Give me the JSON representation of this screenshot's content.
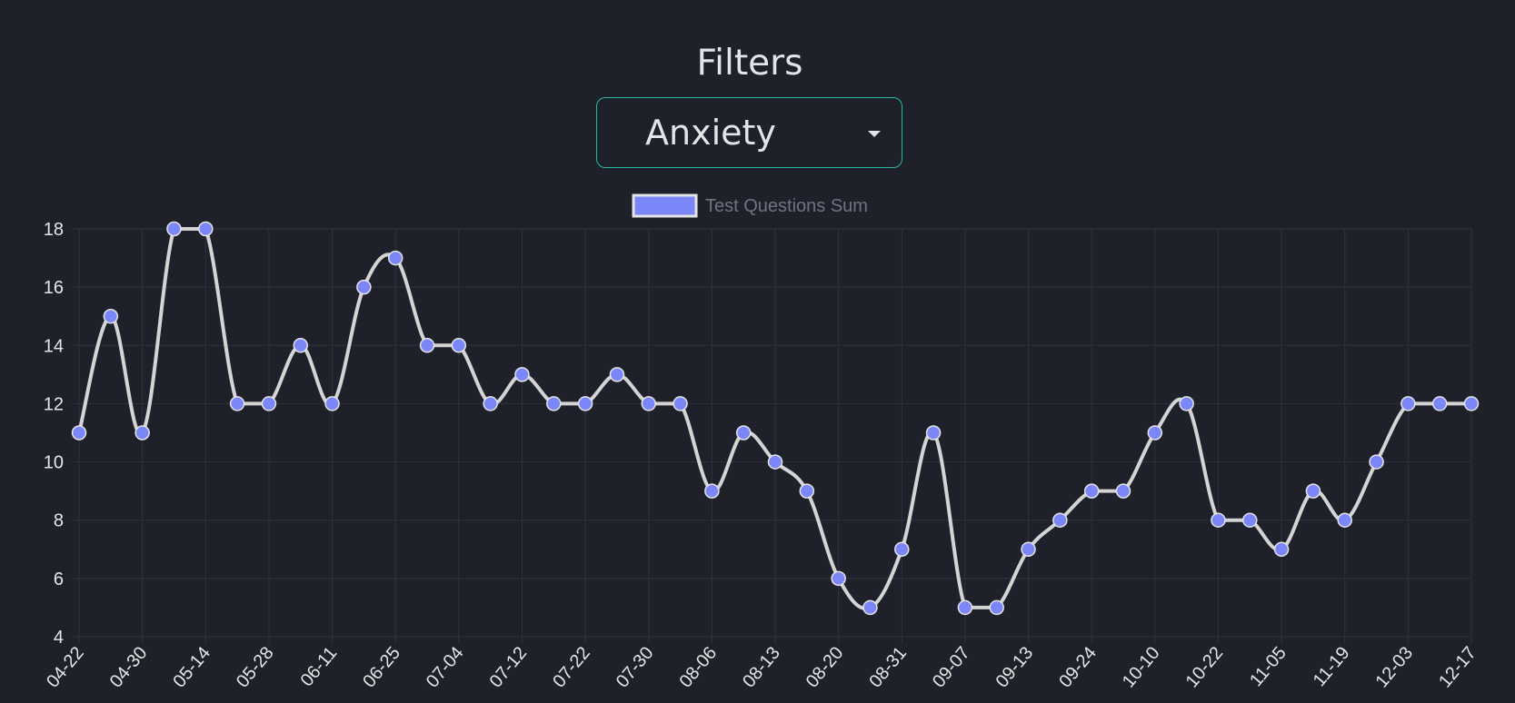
{
  "filters": {
    "title": "Filters",
    "selected": "Anxiety"
  },
  "chart_data": {
    "type": "line",
    "legend": "Test Questions Sum",
    "legend_position": "top-center",
    "grid": true,
    "smooth": true,
    "ylim": [
      4,
      18
    ],
    "yticks": [
      "4",
      "6",
      "8",
      "10",
      "12",
      "14",
      "16",
      "18"
    ],
    "x_tick_labels": [
      "04-22",
      "04-30",
      "05-14",
      "05-28",
      "06-11",
      "06-25",
      "07-04",
      "07-12",
      "07-22",
      "07-30",
      "08-06",
      "08-13",
      "08-20",
      "08-31",
      "09-07",
      "09-13",
      "09-24",
      "10-10",
      "10-22",
      "11-05",
      "11-19",
      "12-03",
      "12-17"
    ],
    "series": [
      {
        "name": "Test Questions Sum",
        "values": [
          11,
          15,
          11,
          18,
          18,
          12,
          12,
          14,
          12,
          16,
          17,
          14,
          14,
          12,
          13,
          12,
          12,
          13,
          12,
          12,
          9,
          11,
          10,
          9,
          6,
          5,
          7,
          11,
          5,
          5,
          7,
          8,
          9,
          9,
          11,
          12,
          8,
          8,
          7,
          9,
          8,
          10,
          12,
          12,
          12
        ]
      }
    ],
    "colors": {
      "line": "#d4d4d4",
      "point_fill": "#7b86f8",
      "point_stroke": "#e4e4e4",
      "grid": "#2e333c",
      "tick_text": "#e6e6e6",
      "legend_text": "#6e7480"
    }
  }
}
